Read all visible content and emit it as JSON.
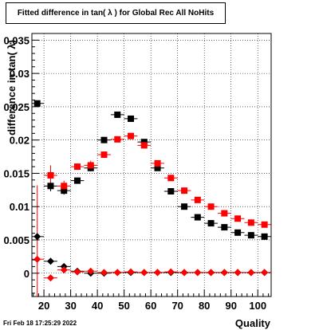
{
  "chart_data": {
    "type": "scatter",
    "title": "Fitted difference in tan( λ ) for Global Rec All NoHits",
    "xlabel": "Quality",
    "ylabel": "difference in tan( λ)",
    "xlim": [
      15.5,
      105
    ],
    "ylim": [
      -0.0035,
      0.036
    ],
    "xticks": [
      "20",
      "30",
      "40",
      "50",
      "60",
      "70",
      "80",
      "90",
      "100"
    ],
    "yticks": [
      "0",
      "0.005",
      "0.01",
      "0.015",
      "0.02",
      "0.025",
      "0.03",
      "0.035"
    ],
    "grid": true,
    "series": [
      {
        "marker": "square",
        "color": "#000000",
        "x": [
          17.5,
          22.5,
          27.5,
          32.5,
          37.5,
          42.5,
          47.5,
          52.5,
          57.5,
          62.5,
          67.5,
          72.5,
          77.5,
          82.5,
          87.5,
          92.5,
          97.5,
          102.5
        ],
        "y": [
          0.0255,
          0.0131,
          0.0124,
          0.0139,
          0.0158,
          0.02,
          0.0238,
          0.0232,
          0.0197,
          0.0158,
          0.0123,
          0.01,
          0.0084,
          0.0075,
          0.0069,
          0.0061,
          0.0057,
          0.0055
        ],
        "yerr": [
          0.0,
          0.0008,
          0.0006,
          0.0,
          0.0005,
          0.0,
          0.0,
          0.0,
          0.0,
          0.0,
          0.0,
          0.0,
          0.0,
          0.0,
          0.0,
          0.0,
          0.0,
          0.0
        ]
      },
      {
        "marker": "square",
        "color": "#ff0000",
        "x": [
          22.5,
          27.5,
          32.5,
          37.5,
          42.5,
          47.5,
          52.5,
          57.5,
          62.5,
          67.5,
          72.5,
          77.5,
          82.5,
          87.5,
          92.5,
          97.5,
          102.5
        ],
        "y": [
          0.0147,
          0.0131,
          0.016,
          0.0162,
          0.0178,
          0.0201,
          0.0206,
          0.0192,
          0.0165,
          0.0143,
          0.0124,
          0.011,
          0.01,
          0.009,
          0.0082,
          0.0076,
          0.0073
        ],
        "yerr": [
          0.0015,
          0.0008,
          0.0,
          0.0007,
          0.0,
          0.0,
          0.0,
          0.0,
          0.0,
          0.0,
          0.0,
          0.0,
          0.0,
          0.0,
          0.0,
          0.0,
          0.0
        ]
      },
      {
        "marker": "diamond",
        "color": "#000000",
        "x": [
          17.5,
          22.5,
          27.5,
          32.5,
          37.5,
          42.5,
          47.5,
          52.5,
          57.5,
          62.5,
          67.5,
          72.5,
          77.5,
          82.5,
          87.5,
          92.5,
          97.5,
          102.5
        ],
        "y": [
          0.0055,
          0.0018,
          0.001,
          0.0003,
          0.0,
          0.0,
          0.0001,
          0.0001,
          0.0001,
          0.0001,
          0.0001,
          0.0001,
          0.0001,
          0.0001,
          0.0001,
          0.0001,
          0.0001,
          0.0001
        ],
        "yerr": [
          0.0,
          0.0004,
          0.0,
          0.0,
          0.0,
          0.0,
          0.0,
          0.0,
          0.0,
          0.0,
          0.0,
          0.0,
          0.0,
          0.0,
          0.0,
          0.0,
          0.0,
          0.0
        ]
      },
      {
        "marker": "diamond",
        "color": "#ff0000",
        "x": [
          17.5,
          22.5,
          27.5,
          32.5,
          37.5,
          42.5,
          47.5,
          52.5,
          57.5,
          62.5,
          67.5,
          72.5,
          77.5,
          82.5,
          87.5,
          92.5,
          97.5,
          102.5
        ],
        "y": [
          0.0021,
          -0.0007,
          0.0005,
          0.0002,
          0.0003,
          0.0001,
          0.0001,
          0.0002,
          0.0001,
          0.0001,
          0.0002,
          0.0001,
          0.0001,
          0.0001,
          0.0001,
          0.0001,
          0.0001,
          0.0001
        ],
        "yerr": [
          0.0111,
          0.0004,
          0.0003,
          0.0,
          0.0,
          0.0,
          0.0,
          0.0,
          0.0,
          0.0,
          0.0,
          0.0,
          0.0,
          0.0,
          0.0,
          0.0,
          0.0,
          0.0
        ]
      }
    ]
  },
  "footer": {
    "timestamp": "Fri Feb 18 17:25:29 2022"
  }
}
